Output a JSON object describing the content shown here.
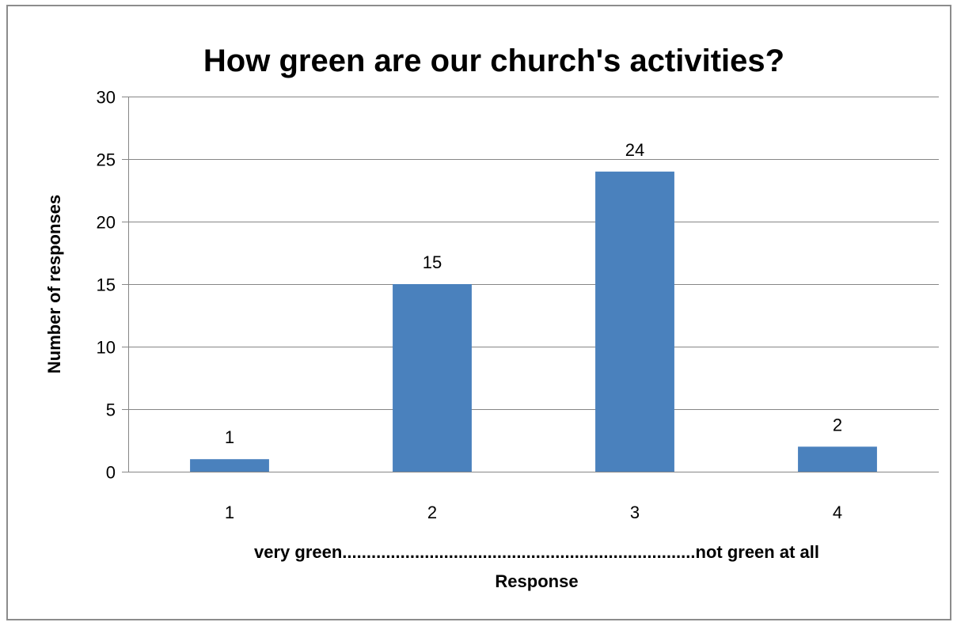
{
  "chart_data": {
    "type": "bar",
    "title": "How green are our church's activities?",
    "categories": [
      "1",
      "2",
      "3",
      "4"
    ],
    "values": [
      1,
      15,
      24,
      2
    ],
    "data_labels": [
      "1",
      "15",
      "24",
      "2"
    ],
    "xlabel": "Response",
    "xlabel_scale": "very green.........................................................................not green at all",
    "ylabel": "Number of responses",
    "ylim": [
      0,
      30
    ],
    "yticks": [
      0,
      5,
      10,
      15,
      20,
      25,
      30
    ],
    "ytick_labels": [
      "0",
      "5",
      "10",
      "15",
      "20",
      "25",
      "30"
    ],
    "grid": true,
    "legend": "none",
    "colors": {
      "bar": "#4A81BD",
      "grid": "#868686",
      "axis": "#868686"
    }
  }
}
